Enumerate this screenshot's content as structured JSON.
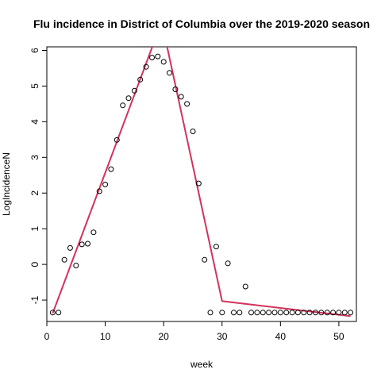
{
  "chart_data": {
    "type": "scatter",
    "title": "Flu incidence in District of Columbia over the 2019-2020 season",
    "xlabel": "week",
    "ylabel": "LogIncidenceN",
    "xlim": [
      0,
      53
    ],
    "ylim": [
      -1.6,
      6.1
    ],
    "x_ticks": [
      0,
      10,
      20,
      30,
      40,
      50
    ],
    "y_ticks": [
      -1,
      0,
      1,
      2,
      3,
      4,
      5,
      6
    ],
    "grid": false,
    "legend": "none",
    "points": {
      "x": [
        1,
        2,
        3,
        4,
        5,
        6,
        7,
        8,
        9,
        10,
        11,
        12,
        13,
        14,
        15,
        16,
        17,
        18,
        19,
        20,
        21,
        22,
        23,
        24,
        25,
        26,
        27,
        28,
        29,
        30,
        31,
        32,
        33,
        34,
        35,
        36,
        37,
        38,
        39,
        40,
        41,
        42,
        43,
        44,
        45,
        46,
        47,
        48,
        49,
        50,
        51,
        52
      ],
      "y": [
        -1.35,
        -1.35,
        0.13,
        0.46,
        -0.03,
        0.56,
        0.58,
        0.9,
        2.05,
        2.24,
        2.67,
        3.49,
        4.46,
        4.66,
        4.87,
        5.18,
        5.54,
        5.8,
        5.83,
        5.68,
        5.37,
        4.91,
        4.7,
        4.5,
        3.73,
        2.27,
        0.13,
        -1.35,
        0.5,
        -1.35,
        0.03,
        -1.35,
        -1.35,
        -0.62,
        -1.35,
        -1.35,
        -1.35,
        -1.35,
        -1.35,
        -1.35,
        -1.35,
        -1.35,
        -1.35,
        -1.35,
        -1.35,
        -1.35,
        -1.35,
        -1.35,
        -1.35,
        -1.35,
        -1.35,
        -1.35
      ]
    },
    "fit_line": {
      "color": "#d2335a",
      "x": [
        1,
        18.4,
        20.4,
        30,
        52
      ],
      "y": [
        -1.37,
        6.25,
        6.25,
        -1.03,
        -1.45
      ]
    }
  }
}
